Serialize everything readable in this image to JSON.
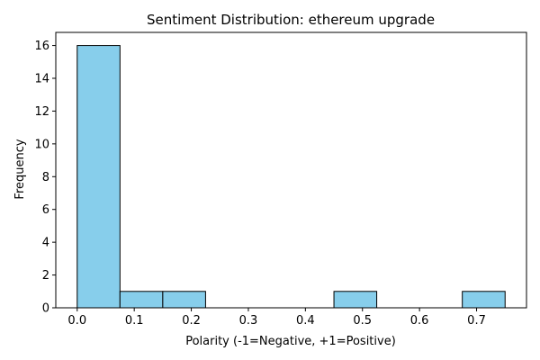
{
  "chart_data": {
    "type": "bar",
    "title": "Sentiment Distribution: ethereum upgrade",
    "xlabel": "Polarity (-1=Negative, +1=Positive)",
    "ylabel": "Frequency",
    "bins": [
      {
        "start": 0.0,
        "end": 0.075,
        "count": 16
      },
      {
        "start": 0.075,
        "end": 0.15,
        "count": 1
      },
      {
        "start": 0.15,
        "end": 0.225,
        "count": 1
      },
      {
        "start": 0.225,
        "end": 0.3,
        "count": 0
      },
      {
        "start": 0.3,
        "end": 0.375,
        "count": 0
      },
      {
        "start": 0.375,
        "end": 0.45,
        "count": 0
      },
      {
        "start": 0.45,
        "end": 0.525,
        "count": 1
      },
      {
        "start": 0.525,
        "end": 0.6,
        "count": 0
      },
      {
        "start": 0.6,
        "end": 0.675,
        "count": 0
      },
      {
        "start": 0.675,
        "end": 0.75,
        "count": 1
      }
    ],
    "xlim": [
      -0.0375,
      0.7875
    ],
    "ylim": [
      0,
      16.8
    ],
    "xticks": [
      0.0,
      0.1,
      0.2,
      0.3,
      0.4,
      0.5,
      0.6,
      0.7
    ],
    "xtick_labels": [
      "0.0",
      "0.1",
      "0.2",
      "0.3",
      "0.4",
      "0.5",
      "0.6",
      "0.7"
    ],
    "yticks": [
      0,
      2,
      4,
      6,
      8,
      10,
      12,
      14,
      16
    ],
    "ytick_labels": [
      "0",
      "2",
      "4",
      "6",
      "8",
      "10",
      "12",
      "14",
      "16"
    ],
    "grid": false,
    "legend": "none",
    "colors": {
      "bar_fill": "#87ceeb",
      "bar_edge": "#000000"
    }
  }
}
